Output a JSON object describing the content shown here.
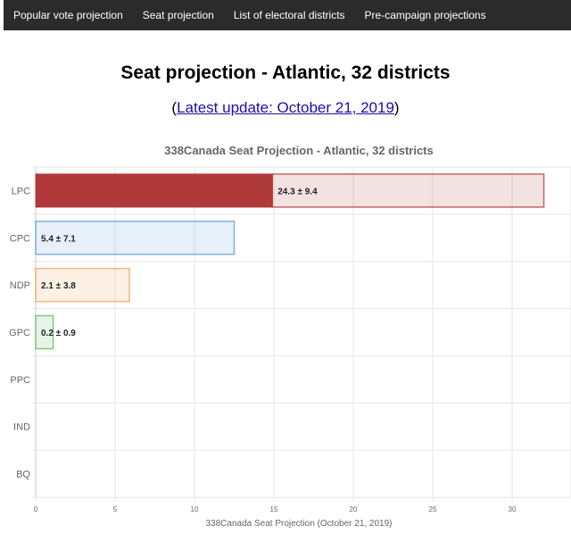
{
  "nav": {
    "items": [
      "Popular vote projection",
      "Seat projection",
      "List of electoral districts",
      "Pre-campaign projections"
    ]
  },
  "page": {
    "title": "Seat projection - Atlantic, 32 districts",
    "update_open": "(",
    "update_link": "Latest update: October 21, 2019",
    "update_close": ")"
  },
  "chart_data": {
    "type": "bar",
    "orientation": "horizontal",
    "title": "338Canada Seat Projection - Atlantic, 32 districts",
    "xlabel": "338Canada Seat Projection (October 21, 2019)",
    "categories": [
      "LPC",
      "CPC",
      "NDP",
      "GPC",
      "PPC",
      "IND",
      "BQ"
    ],
    "values": [
      24.3,
      5.4,
      2.1,
      0.2,
      0,
      0,
      0
    ],
    "ranges": [
      [
        14.9,
        32
      ],
      [
        0,
        12.5
      ],
      [
        0,
        5.9
      ],
      [
        0,
        1.1
      ],
      [
        0,
        0
      ],
      [
        0,
        0
      ],
      [
        0,
        0
      ]
    ],
    "labels": [
      "24.3 ± 9.4",
      "5.4 ± 7.1",
      "2.1 ± 3.8",
      "0.2 ± 0.9",
      "",
      "",
      ""
    ],
    "colors": {
      "LPC": "#b03a3a",
      "CPC": "#5b9bd5",
      "NDP": "#f0a050",
      "GPC": "#5cb85c",
      "PPC": "#6b3fa0",
      "IND": "#999999",
      "BQ": "#33b2cc"
    },
    "xlim": [
      0,
      32
    ],
    "xticks": [
      0,
      5,
      10,
      15,
      20,
      25,
      30
    ],
    "grid": true,
    "legend": "none"
  }
}
